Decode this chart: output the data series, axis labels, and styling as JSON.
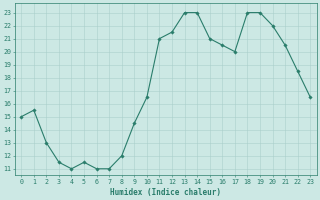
{
  "x": [
    0,
    1,
    2,
    3,
    4,
    5,
    6,
    7,
    8,
    9,
    10,
    11,
    12,
    13,
    14,
    15,
    16,
    17,
    18,
    19,
    20,
    21,
    22,
    23
  ],
  "y": [
    15,
    15.5,
    13,
    11.5,
    11,
    11.5,
    11,
    11,
    12,
    14.5,
    16.5,
    21,
    21.5,
    23,
    23,
    21,
    20.5,
    20,
    23,
    23,
    22,
    20.5,
    18.5,
    16.5
  ],
  "line_color": "#2a7d6b",
  "marker_color": "#2a7d6b",
  "bg_color": "#cce8e4",
  "grid_color": "#aacfcb",
  "xlabel": "Humidex (Indice chaleur)",
  "xlim": [
    -0.5,
    23.5
  ],
  "ylim": [
    10.5,
    23.7
  ],
  "yticks": [
    11,
    12,
    13,
    14,
    15,
    16,
    17,
    18,
    19,
    20,
    21,
    22,
    23
  ],
  "xticks": [
    0,
    1,
    2,
    3,
    4,
    5,
    6,
    7,
    8,
    9,
    10,
    11,
    12,
    13,
    14,
    15,
    16,
    17,
    18,
    19,
    20,
    21,
    22,
    23
  ],
  "font_color": "#2a7d6b",
  "axis_color": "#2a7d6b",
  "xlabel_fontsize": 5.5,
  "tick_fontsize": 4.8,
  "linewidth": 0.8,
  "markersize": 1.8
}
